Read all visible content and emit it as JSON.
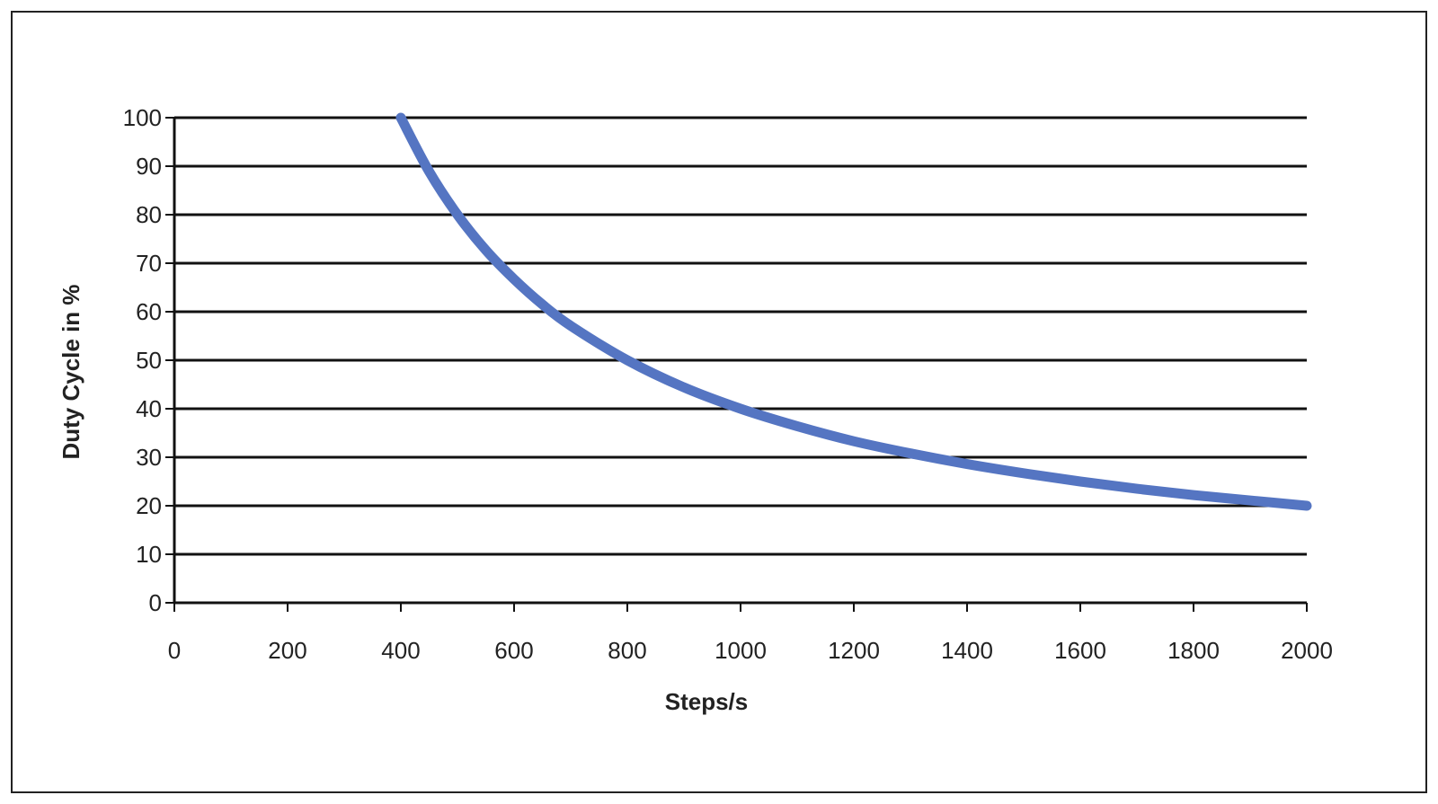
{
  "chart_data": {
    "type": "line",
    "title": "",
    "xlabel": "Steps/s",
    "ylabel": "Duty Cycle in %",
    "xlim": [
      0,
      2000
    ],
    "ylim": [
      0,
      100
    ],
    "x_ticks": [
      0,
      200,
      400,
      600,
      800,
      1000,
      1200,
      1400,
      1600,
      1800,
      2000
    ],
    "y_ticks": [
      0,
      10,
      20,
      30,
      40,
      50,
      60,
      70,
      80,
      90,
      100
    ],
    "grid": "horizontal",
    "legend": "none",
    "series": [
      {
        "color": "#5575c2",
        "x": [
          400,
          450,
          500,
          550,
          600,
          650,
          700,
          800,
          900,
          1000,
          1100,
          1200,
          1300,
          1400,
          1500,
          1600,
          1700,
          1800,
          1900,
          2000
        ],
        "y": [
          100,
          88.9,
          80,
          72.7,
          66.7,
          61.5,
          57.1,
          50,
          44.4,
          40,
          36.4,
          33.3,
          30.8,
          28.6,
          26.7,
          25,
          23.5,
          22.2,
          21.1,
          20
        ]
      }
    ]
  }
}
